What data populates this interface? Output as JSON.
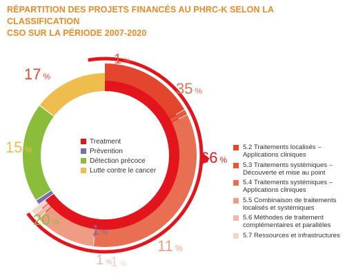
{
  "title": {
    "line1": "RÉPARTITION DES PROJETS FINANCÉS AU PHRC-K SELON LA CLASSIFICATION",
    "line2": "CSO SUR LA PÉRIODE 2007-2020"
  },
  "chart_data": {
    "type": "pie",
    "title": "RÉPARTITION DES PROJETS FINANCÉS AU PHRC-K SELON LA CLASSIFICATION CSO SUR LA PÉRIODE 2007-2020",
    "categories": [
      {
        "name": "Treatment",
        "value": 66,
        "color": "#e3141c"
      },
      {
        "name": "Prévention",
        "value": 1,
        "color": "#7271ad"
      },
      {
        "name": "Détection précoce",
        "value": 20,
        "color": "#8cbd3a"
      },
      {
        "name": "Lutte contre le cancer",
        "value": 15,
        "color": "#efbd4e"
      }
    ],
    "treatment_subcategories": [
      {
        "name": "5.2 Traitements localisés – Applications cliniques",
        "value": 17,
        "color": "#e3462d"
      },
      {
        "name": "5.3 Traitements systémiques – Découverte et mise au point",
        "value": 1,
        "color": "#e8563e"
      },
      {
        "name": "5.4 Traitements systémiques – Applications cliniques",
        "value": 35,
        "color": "#e96f53"
      },
      {
        "name": "5.5 Combinaison de traitements localisés et systémiques",
        "value": 11,
        "color": "#ee9c83"
      },
      {
        "name": "5.6 Méthodes de traitement complémentaires et parallèles",
        "value": 1,
        "color": "#f3b8a6"
      },
      {
        "name": "5.7 Ressources et infrastructures",
        "value": 1,
        "color": "#f7d4c8"
      }
    ],
    "labels": {
      "treatment": "66",
      "prevention": "1",
      "detection": "20",
      "lutte": "15",
      "sub_52": "17",
      "sub_53": "1",
      "sub_54": "35",
      "sub_55": "11",
      "sub_56": "1",
      "sub_57": "1",
      "percent_sign": "%"
    },
    "legend_placement": "center (categories) and right (treatment subcategories)"
  },
  "legend_inner": [
    {
      "label": "Treatment",
      "color": "#e3141c"
    },
    {
      "label": "Prévention",
      "color": "#7271ad"
    },
    {
      "label": "Détection précoce",
      "color": "#8cbd3a"
    },
    {
      "label": "Lutte contre le cancer",
      "color": "#efbd4e"
    }
  ],
  "legend_right": [
    {
      "line1": "5.2 Traitements localisés –",
      "line2": "Applications cliniques",
      "color": "#e3462d"
    },
    {
      "line1": "5.3 Traitements systémiques –",
      "line2": "Découverte et mise au point",
      "color": "#e8563e"
    },
    {
      "line1": "5.4 Traitements systémiques –",
      "line2": "Applications cliniques",
      "color": "#e96f53"
    },
    {
      "line1": "5.5 Combinaison de traitements",
      "line2": "localisés et systémiques",
      "color": "#ee9c83"
    },
    {
      "line1": "5.6 Méthodes de traitement",
      "line2": "complémentaires et parallèles",
      "color": "#f3b8a6"
    },
    {
      "line1": "5.7 Ressources et infrastructures",
      "line2": "",
      "color": "#f7d4c8"
    }
  ]
}
